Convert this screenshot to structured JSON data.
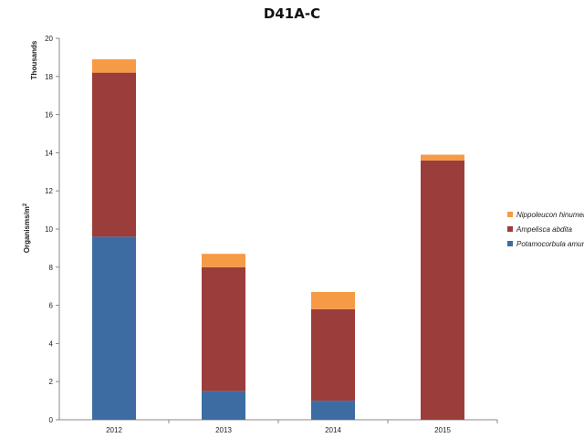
{
  "chart_data": {
    "type": "bar",
    "stacked": true,
    "title": "D41A-C",
    "xlabel": "",
    "ylabel": "Organisms/m",
    "ylabel_superscript": "2",
    "unit_label": "Thousands",
    "ylim": [
      0,
      20
    ],
    "yticks": [
      "0",
      "2",
      "4",
      "6",
      "8",
      "10",
      "12",
      "14",
      "16",
      "18",
      "20"
    ],
    "categories": [
      "2012",
      "2013",
      "2014",
      "2015"
    ],
    "series": [
      {
        "name": "Potamocorbula  amurensis",
        "color": "#3D6CA3",
        "values": [
          9.6,
          1.5,
          1.0,
          0.0
        ]
      },
      {
        "name": "Ampelisca abdita",
        "color": "#9B3D3B",
        "values": [
          8.6,
          6.5,
          4.8,
          13.6
        ]
      },
      {
        "name": "Nippoleucon  hinumensis",
        "color": "#F79A46",
        "values": [
          0.7,
          0.7,
          0.9,
          0.3
        ]
      }
    ],
    "legend_position": "right",
    "grid": false
  }
}
